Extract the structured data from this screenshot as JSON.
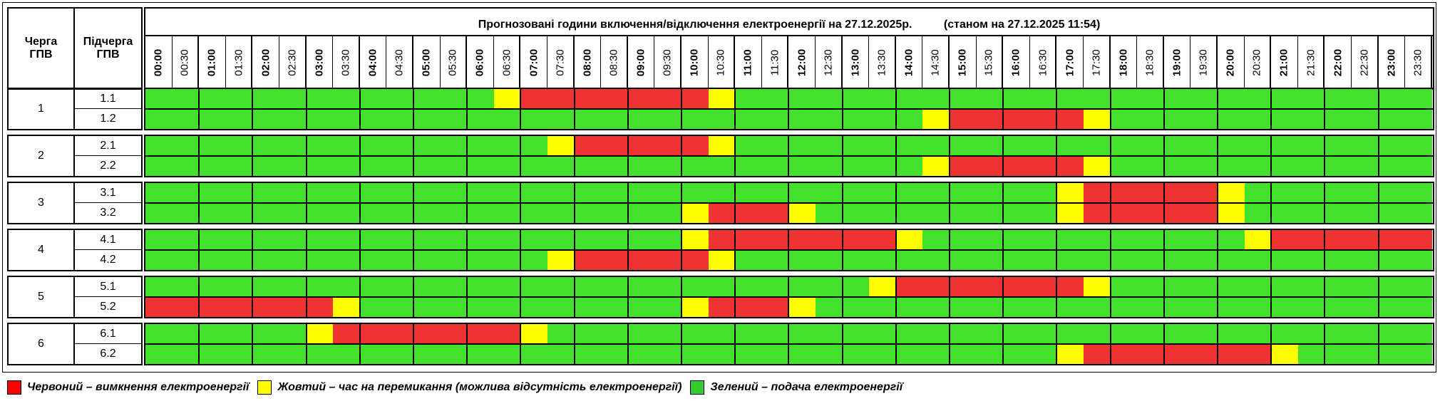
{
  "header": {
    "queue_label": "Черга\nГПВ",
    "subqueue_label": "Підчерга\nГПВ",
    "title": "Прогнозовані години включення/відключення електроенергії на 27.12.2025р.          (станом на 27.12.2025 11:54)"
  },
  "times": [
    "00:00",
    "00:30",
    "01:00",
    "01:30",
    "02:00",
    "02:30",
    "03:00",
    "03:30",
    "04:00",
    "04:30",
    "05:00",
    "05:30",
    "06:00",
    "06:30",
    "07:00",
    "07:30",
    "08:00",
    "08:30",
    "09:00",
    "09:30",
    "10:00",
    "10:30",
    "11:00",
    "11:30",
    "12:00",
    "12:30",
    "13:00",
    "13:30",
    "14:00",
    "14:30",
    "15:00",
    "15:30",
    "16:00",
    "16:30",
    "17:00",
    "17:30",
    "18:00",
    "18:30",
    "19:00",
    "19:30",
    "20:00",
    "20:30",
    "21:00",
    "21:30",
    "22:00",
    "22:30",
    "23:00",
    "23:30"
  ],
  "colors": {
    "G": "#44e02e",
    "Y": "#ffff00",
    "R": "#ee3333"
  },
  "groups": [
    {
      "queue": "1",
      "subs": [
        {
          "label": "1.1",
          "slots": "GGGGGGGGGGGGGYRRRRRRRYGGGGGGGGGGGGGGGGGGGGGGGGGG"
        },
        {
          "label": "1.2",
          "slots": "GGGGGGGGGGGGGGGGGGGGGGGGGGGGGYRRRRRYGGGGGGGGGGGG"
        }
      ]
    },
    {
      "queue": "2",
      "subs": [
        {
          "label": "2.1",
          "slots": "GGGGGGGGGGGGGGGYRRRRRYGGGGGGGGGGGGGGGGGGGGGGGGGG"
        },
        {
          "label": "2.2",
          "slots": "GGGGGGGGGGGGGGGGGGGGGGGGGGGGGYRRRRRYGGGGGGGGGGGG"
        }
      ]
    },
    {
      "queue": "3",
      "subs": [
        {
          "label": "3.1",
          "slots": "GGGGGGGGGGGGGGGGGGGGGGGGGGGGGGGGGGYRRRRRYGGGGGGG"
        },
        {
          "label": "3.2",
          "slots": "GGGGGGGGGGGGGGGGGGGGYRRRYGGGGGGGGGYRRRRRYGGGGGGG"
        }
      ]
    },
    {
      "queue": "4",
      "subs": [
        {
          "label": "4.1",
          "slots": "GGGGGGGGGGGGGGGGGGGGYRRRRRRRYGGGGGGGGGGGGYRRRRRR"
        },
        {
          "label": "4.2",
          "slots": "GGGGGGGGGGGGGGGYRRRRRYGGGGGGGGGGGGGGGGGGGGGGGGGG"
        }
      ]
    },
    {
      "queue": "5",
      "subs": [
        {
          "label": "5.1",
          "slots": "GGGGGGGGGGGGGGGGGGGGGGGGGGGYRRRRRRRYGGGGGGGGGGGG"
        },
        {
          "label": "5.2",
          "slots": "RRRRRRRYGGGGGGGGGGGGYRRRYGGGGGGGGGGGGGGGGGGGGGGG"
        }
      ]
    },
    {
      "queue": "6",
      "subs": [
        {
          "label": "6.1",
          "slots": "GGGGGGYRRRRRRRYGGGGGGGGGGGGGGGGGGGGGGGGGGGGGGGGG"
        },
        {
          "label": "6.2",
          "slots": "GGGGGGGGGGGGGGGGGGGGGGGGGGGGGGGGGGYRRRRRRRYGGGGG"
        }
      ]
    }
  ],
  "legend": [
    {
      "color": "#ff0000",
      "text": "Червоний – вимкнення електроенергії"
    },
    {
      "color": "#ffff00",
      "text": "Жовтий – час на перемикання (можлива відсутність електроенергії)"
    },
    {
      "color": "#33cc33",
      "text": "Зелений – подача електроенергії"
    }
  ]
}
